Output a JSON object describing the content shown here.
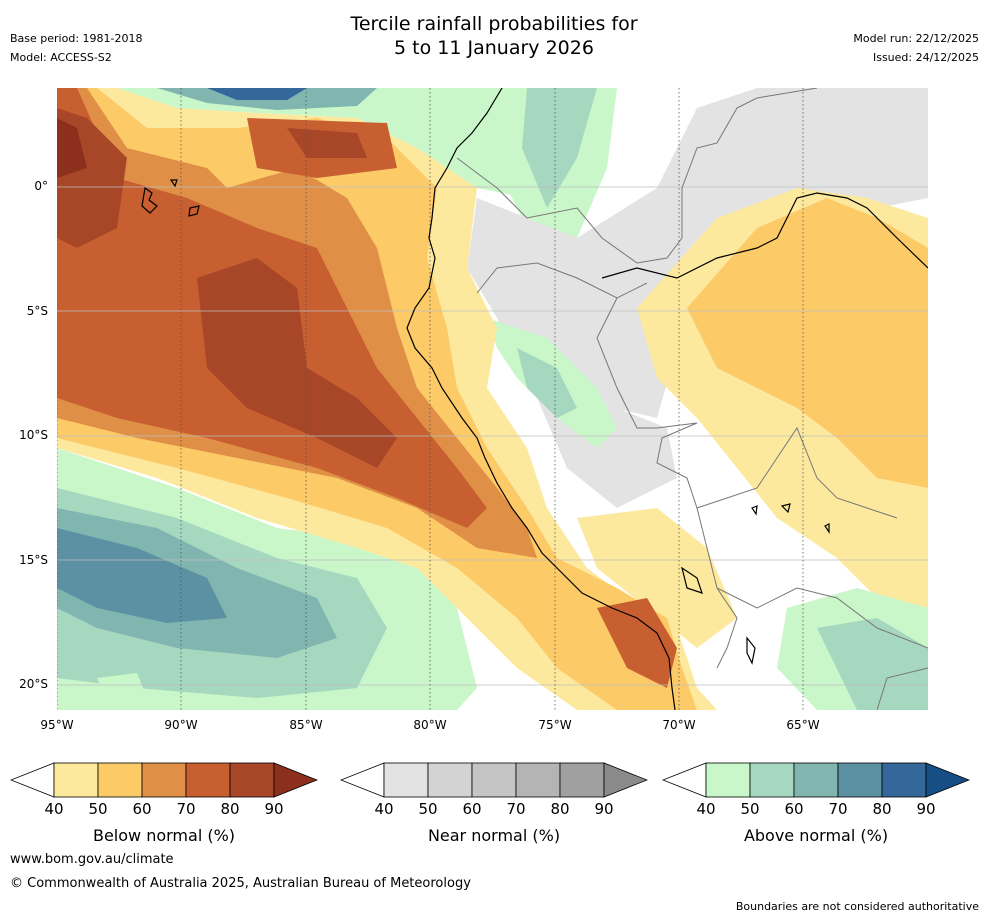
{
  "header": {
    "title_line1": "Tercile rainfall probabilities for",
    "title_line2": "5 to 11 January 2026",
    "base_period": "Base period: 1981-2018",
    "model": "Model: ACCESS-S2",
    "model_run": "Model run: 22/12/2025",
    "issued": "Issued: 24/12/2025"
  },
  "map": {
    "lat_labels": [
      "0°",
      "5°S",
      "10°S",
      "15°S",
      "20°S"
    ],
    "lon_labels": [
      "95°W",
      "90°W",
      "85°W",
      "80°W",
      "75°W",
      "70°W",
      "65°W"
    ],
    "palette": {
      "below": [
        "#fde99e",
        "#fdca68",
        "#df9046",
        "#c85f30",
        "#a84628",
        "#8c2f1d"
      ],
      "near": [
        "#e3e3e3",
        "#d3d3d3",
        "#c5c5c5",
        "#b4b4b4",
        "#a0a0a0",
        "#8a8a8a"
      ],
      "above": [
        "#c9f7c9",
        "#a6d8bf",
        "#81b6b0",
        "#5b91a2",
        "#34679a",
        "#174f84"
      ],
      "coast": "#000000",
      "border": "#777777"
    }
  },
  "colorbars": [
    {
      "title": "Below normal (%)",
      "ticks": [
        "40",
        "50",
        "60",
        "70",
        "80",
        "90"
      ],
      "colors": [
        "#fde99e",
        "#fdca68",
        "#df9046",
        "#c85f30",
        "#a84628",
        "#8c2f1d"
      ]
    },
    {
      "title": "Near normal (%)",
      "ticks": [
        "40",
        "50",
        "60",
        "70",
        "80",
        "90"
      ],
      "colors": [
        "#e3e3e3",
        "#d3d3d3",
        "#c5c5c5",
        "#b4b4b4",
        "#a0a0a0",
        "#8a8a8a"
      ]
    },
    {
      "title": "Above normal (%)",
      "ticks": [
        "40",
        "50",
        "60",
        "70",
        "80",
        "90"
      ],
      "colors": [
        "#c9f7c9",
        "#a6d8bf",
        "#81b6b0",
        "#5b91a2",
        "#34679a",
        "#174f84"
      ]
    }
  ],
  "footer": {
    "url": "www.bom.gov.au/climate",
    "copyright": "© Commonwealth of Australia 2025, Australian Bureau of Meteorology",
    "disclaimer": "Boundaries are not considered authoritative"
  }
}
